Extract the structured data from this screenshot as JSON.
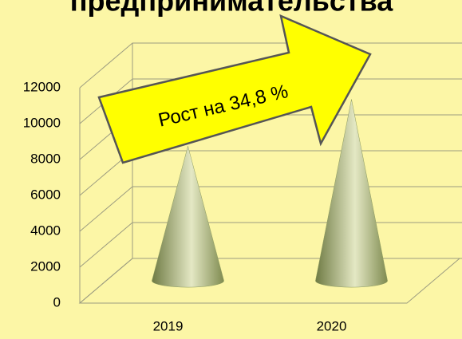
{
  "chart_data": {
    "type": "cone",
    "title": "предпринимательства",
    "annotation": "Рост  на 34,8 %",
    "categories": [
      "2019",
      "2020"
    ],
    "values": [
      7500,
      10110
    ],
    "color": "#8e9c5e",
    "ylim": [
      0,
      12000
    ],
    "yticks": [
      0,
      2000,
      4000,
      6000,
      8000,
      10000,
      12000
    ],
    "grid": true
  }
}
